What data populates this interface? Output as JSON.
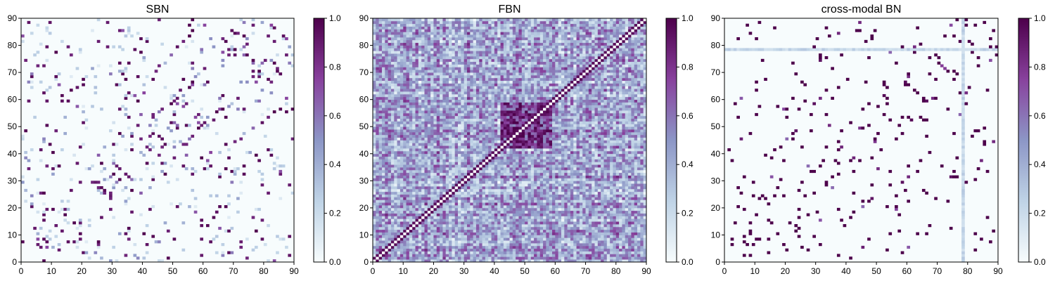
{
  "colormap": {
    "name": "BuPu",
    "stops": [
      "#f7fcfd",
      "#bfd3e6",
      "#8c96c6",
      "#88419d",
      "#4d004b"
    ]
  },
  "chart_data": [
    {
      "type": "heatmap",
      "title": "SBN",
      "xlabel": "",
      "ylabel": "",
      "xlim": [
        0,
        90
      ],
      "ylim": [
        0,
        90
      ],
      "xticks": [
        "0",
        "10",
        "20",
        "30",
        "40",
        "50",
        "60",
        "70",
        "80",
        "90"
      ],
      "yticks": [
        "0",
        "10",
        "20",
        "30",
        "40",
        "50",
        "60",
        "70",
        "80",
        "90"
      ],
      "grid": false,
      "colorbar": {
        "range": [
          0.0,
          1.0
        ],
        "ticks": [
          "0.0",
          "0.2",
          "0.4",
          "0.6",
          "0.8",
          "1.0"
        ]
      },
      "matrix_size": 90,
      "description": "Sparse symmetric matrix, mostly near 0; scattered high values (~1.0) concentrated near the diagonal and in symmetric off-diagonal clusters",
      "density": 0.045
    },
    {
      "type": "heatmap",
      "title": "FBN",
      "xlabel": "",
      "ylabel": "",
      "xlim": [
        0,
        90
      ],
      "ylim": [
        0,
        90
      ],
      "xticks": [
        "0",
        "10",
        "20",
        "30",
        "40",
        "50",
        "60",
        "70",
        "80",
        "90"
      ],
      "yticks": [
        "0",
        "10",
        "20",
        "30",
        "40",
        "50",
        "60",
        "70",
        "80",
        "90"
      ],
      "grid": false,
      "colorbar": {
        "range": [
          0.0,
          1.0
        ],
        "ticks": [
          "0.0",
          "0.2",
          "0.4",
          "0.6",
          "0.8",
          "1.0"
        ]
      },
      "matrix_size": 90,
      "description": "Dense symmetric matrix with values spanning 0-1, diagonal near 0 (white), strong block around 42-58",
      "density": 1.0
    },
    {
      "type": "heatmap",
      "title": "cross-modal BN",
      "xlabel": "",
      "ylabel": "",
      "xlim": [
        0,
        90
      ],
      "ylim": [
        0,
        90
      ],
      "xticks": [
        "0",
        "10",
        "20",
        "30",
        "40",
        "50",
        "60",
        "70",
        "80",
        "90"
      ],
      "yticks": [
        "0",
        "10",
        "20",
        "30",
        "40",
        "50",
        "60",
        "70",
        "80",
        "90"
      ],
      "grid": false,
      "colorbar": {
        "range": [
          0.0,
          1.0
        ],
        "ticks": [
          "0.0",
          "0.2",
          "0.4",
          "0.6",
          "0.8",
          "1.0"
        ]
      },
      "matrix_size": 90,
      "description": "Very sparse symmetric matrix with mostly saturated (~1.0) isolated cells; faint vertical/horizontal band at index 78",
      "density": 0.03
    }
  ]
}
